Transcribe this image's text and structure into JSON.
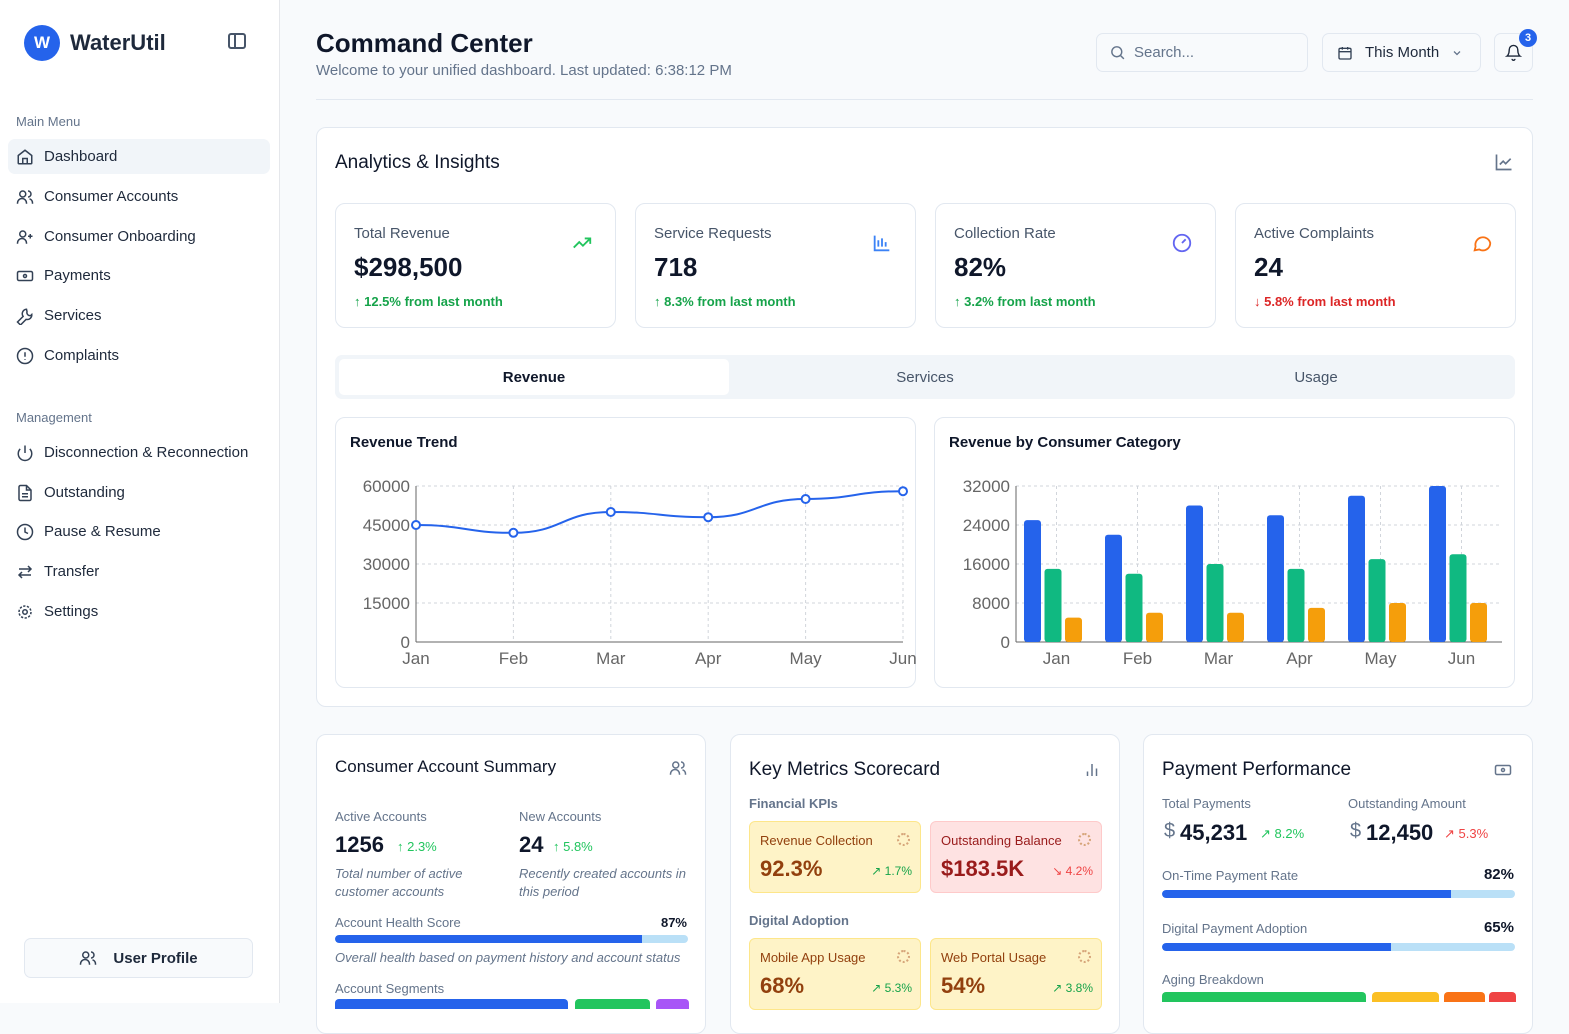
{
  "app": {
    "logo_letter": "W",
    "name": "WaterUtil"
  },
  "sidebar": {
    "main_label": "Main Menu",
    "main_items": [
      {
        "label": "Dashboard",
        "icon": "home-icon"
      },
      {
        "label": "Consumer Accounts",
        "icon": "users-icon"
      },
      {
        "label": "Consumer Onboarding",
        "icon": "user-plus-icon"
      },
      {
        "label": "Payments",
        "icon": "banknote-icon"
      },
      {
        "label": "Services",
        "icon": "wrench-icon"
      },
      {
        "label": "Complaints",
        "icon": "alert-circle-icon"
      }
    ],
    "mgmt_label": "Management",
    "mgmt_items": [
      {
        "label": "Disconnection & Reconnection",
        "icon": "power-icon"
      },
      {
        "label": "Outstanding",
        "icon": "file-text-icon"
      },
      {
        "label": "Pause & Resume",
        "icon": "clock-icon"
      },
      {
        "label": "Transfer",
        "icon": "arrows-icon"
      },
      {
        "label": "Settings",
        "icon": "gear-icon"
      }
    ],
    "profile": "User Profile"
  },
  "header": {
    "title": "Command Center",
    "subtitle": "Welcome to your unified dashboard. Last updated: 6:38:12 PM",
    "search_placeholder": "Search...",
    "period": "This Month",
    "notifications": "3"
  },
  "analytics": {
    "title": "Analytics & Insights",
    "kpis": [
      {
        "label": "Total Revenue",
        "value": "$298,500",
        "change": "↑ 12.5% from last month",
        "trend": "up",
        "color": "#16a34a",
        "icon": "trending-up-icon"
      },
      {
        "label": "Service Requests",
        "value": "718",
        "change": "↑ 8.3% from last month",
        "trend": "up",
        "color": "#16a34a",
        "icon": "bar-chart-icon"
      },
      {
        "label": "Collection Rate",
        "value": "82%",
        "change": "↑ 3.2% from last month",
        "trend": "up",
        "color": "#16a34a",
        "icon": "gauge-icon"
      },
      {
        "label": "Active Complaints",
        "value": "24",
        "change": "↓ 5.8% from last month",
        "trend": "down",
        "color": "#dc2626",
        "icon": "message-icon"
      }
    ],
    "tabs": [
      "Revenue",
      "Services",
      "Usage"
    ],
    "active_tab": "Revenue"
  },
  "chart_data": [
    {
      "type": "line",
      "title": "Revenue Trend",
      "categories": [
        "Jan",
        "Feb",
        "Mar",
        "Apr",
        "May",
        "Jun"
      ],
      "values": [
        45000,
        42000,
        50000,
        48000,
        55000,
        58000
      ],
      "ylim": [
        0,
        60000
      ],
      "yticks": [
        "0",
        "15000",
        "30000",
        "45000",
        "60000"
      ],
      "grid": true,
      "color": "#2563eb"
    },
    {
      "type": "bar",
      "title": "Revenue by Consumer Category",
      "categories": [
        "Jan",
        "Feb",
        "Mar",
        "Apr",
        "May",
        "Jun"
      ],
      "series": [
        {
          "values": [
            25000,
            22000,
            28000,
            26000,
            30000,
            32000
          ],
          "color": "#2563eb"
        },
        {
          "values": [
            15000,
            14000,
            16000,
            15000,
            17000,
            18000
          ],
          "color": "#10b981"
        },
        {
          "values": [
            5000,
            6000,
            6000,
            7000,
            8000,
            8000
          ],
          "color": "#f59e0b"
        }
      ],
      "ylim": [
        0,
        32000
      ],
      "yticks": [
        "0",
        "8000",
        "16000",
        "24000",
        "32000"
      ],
      "grid": true
    }
  ],
  "summary": {
    "title": "Consumer Account Summary",
    "active_label": "Active Accounts",
    "active_value": "1256",
    "active_change": "↑ 2.3%",
    "active_desc": "Total number of active customer accounts",
    "new_label": "New Accounts",
    "new_value": "24",
    "new_change": "↑ 5.8%",
    "new_desc": "Recently created accounts in this period",
    "health_label": "Account Health Score",
    "health_value": "87%",
    "health_pct": 87,
    "health_desc": "Overall health based on payment history and account status",
    "segments_label": "Account Segments"
  },
  "scorecard": {
    "title": "Key Metrics Scorecard",
    "financial_label": "Financial KPIs",
    "digital_label": "Digital Adoption",
    "tiles": [
      {
        "label": "Revenue Collection",
        "value": "92.3%",
        "change": "↗ 1.7%"
      },
      {
        "label": "Outstanding Balance",
        "value": "$183.5K",
        "change": "↘ 4.2%"
      },
      {
        "label": "Mobile App Usage",
        "value": "68%",
        "change": "↗ 5.3%"
      },
      {
        "label": "Web Portal Usage",
        "value": "54%",
        "change": "↗ 3.8%"
      }
    ]
  },
  "payments": {
    "title": "Payment Performance",
    "total_label": "Total Payments",
    "total_value": "45,231",
    "total_change": "↗ 8.2%",
    "currency": "$",
    "outstanding_label": "Outstanding Amount",
    "outstanding_value": "12,450",
    "outstanding_change": "↗ 5.3%",
    "ontime_label": "On-Time Payment Rate",
    "ontime_value": "82%",
    "ontime_pct": 82,
    "digital_label": "Digital Payment Adoption",
    "digital_value": "65%",
    "digital_pct": 65,
    "aging_label": "Aging Breakdown"
  }
}
